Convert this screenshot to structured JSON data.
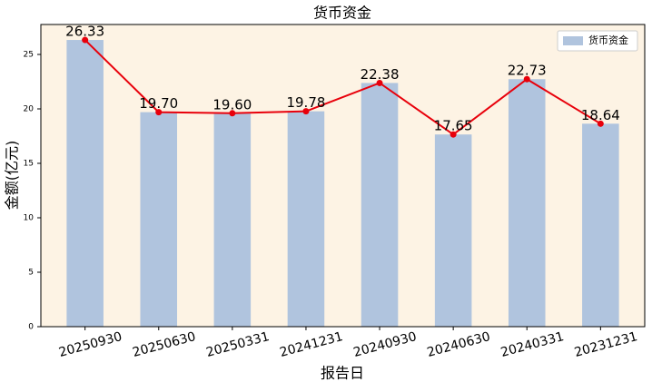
{
  "chart_data": {
    "type": "bar",
    "title": "货币资金",
    "x_label": "报告日",
    "y_label": "金额(亿元)",
    "categories": [
      "20250930",
      "20250630",
      "20250331",
      "20241231",
      "20240930",
      "20240630",
      "20240331",
      "20231231"
    ],
    "series": [
      {
        "name": "货币资金",
        "color": "#b0c4de",
        "line_color": "#e8000b",
        "values": [
          26.33,
          19.7,
          19.6,
          19.78,
          22.38,
          17.65,
          22.73,
          18.64
        ],
        "value_labels": [
          "26.33",
          "19.70",
          "19.60",
          "19.78",
          "22.38",
          "17.65",
          "22.73",
          "18.64"
        ]
      }
    ],
    "ylim": [
      0,
      27.75
    ],
    "yticks": [
      0,
      5,
      10,
      15,
      20,
      25
    ],
    "legend": "upper right",
    "background": "#fdf3e4"
  }
}
